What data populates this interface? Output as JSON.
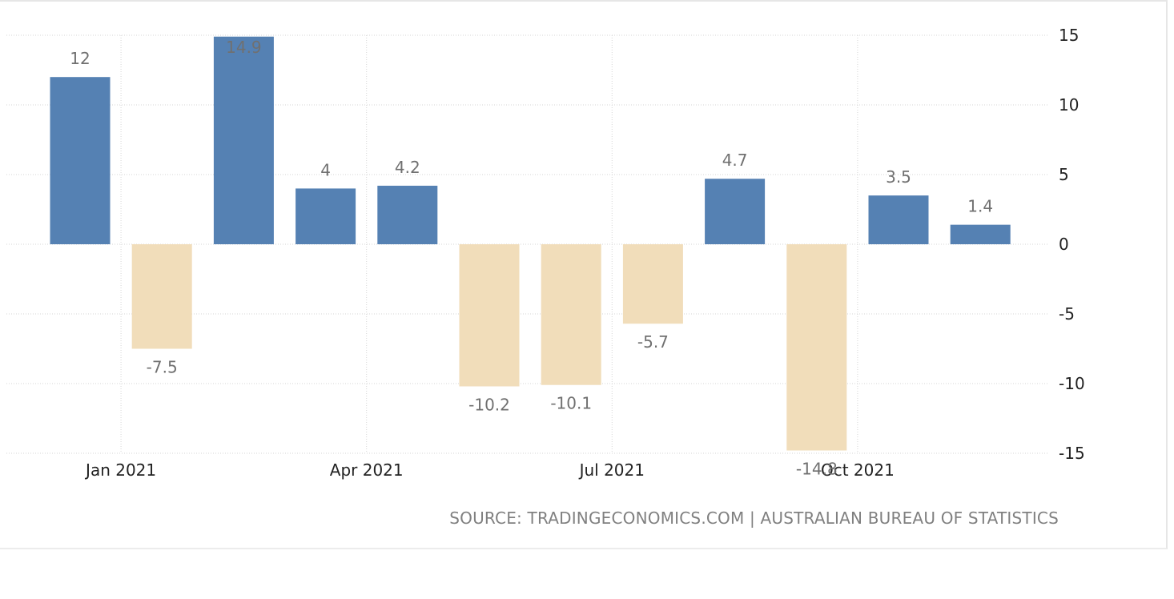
{
  "chart_data": {
    "type": "bar",
    "categories": [
      "Dec 2020",
      "Jan 2021",
      "Feb 2021",
      "Mar 2021",
      "Apr 2021",
      "May 2021",
      "Jun 2021",
      "Jul 2021",
      "Aug 2021",
      "Sep 2021",
      "Oct 2021",
      "Nov 2021"
    ],
    "values": [
      12,
      -7.5,
      14.9,
      4,
      4.2,
      -10.2,
      -10.1,
      -5.7,
      4.7,
      -14.8,
      3.5,
      1.4
    ],
    "value_labels": [
      "12",
      "-7.5",
      "14.9",
      "4",
      "4.2",
      "-10.2",
      "-10.1",
      "-5.7",
      "4.7",
      "-14.8",
      "3.5",
      "1.4"
    ],
    "ylim": [
      -15,
      15
    ],
    "yticks": [
      15,
      10,
      5,
      0,
      -5,
      -10,
      -15
    ],
    "ytick_labels": [
      "15",
      "10",
      "5",
      "0",
      "-5",
      "-10",
      "-15"
    ],
    "y_axis_position": "right",
    "xticks": [
      {
        "label": "Jan 2021",
        "at": "2021-01-01"
      },
      {
        "label": "Apr 2021",
        "at": "2021-04-01"
      },
      {
        "label": "Jul 2021",
        "at": "2021-07-01"
      },
      {
        "label": "Oct 2021",
        "at": "2021-10-01"
      }
    ],
    "grid": true,
    "colors": {
      "positive": "#5581b3",
      "negative": "#f1ddba"
    },
    "source": "SOURCE: TRADINGECONOMICS.COM | AUSTRALIAN BUREAU OF STATISTICS"
  }
}
